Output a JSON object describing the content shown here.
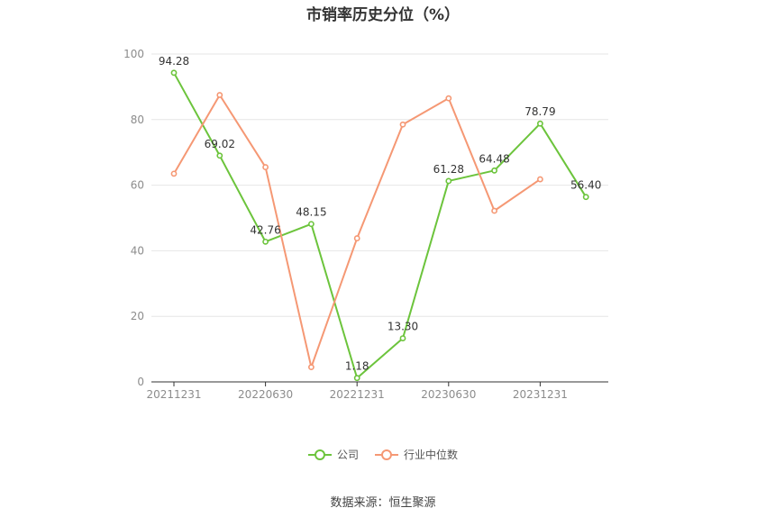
{
  "colors": {
    "company": "#6cc43c",
    "industry": "#f59874",
    "grid": "#e6e6e6",
    "axis": "#333333"
  },
  "chart_data": {
    "type": "line",
    "title": "市销率历史分位（%）",
    "xlabel": "",
    "ylabel": "",
    "ylim": [
      0,
      100
    ],
    "yticks": [
      0,
      20,
      40,
      60,
      80,
      100
    ],
    "x_tick_labels": [
      "20211231",
      "20220630",
      "20221231",
      "20230630",
      "20231231"
    ],
    "categories": [
      "20211231",
      "20220331",
      "20220630",
      "20220930",
      "20221231",
      "20230331",
      "20230630",
      "20230930",
      "20231231",
      "20240331"
    ],
    "grid": true,
    "legend_position": "bottom",
    "series": [
      {
        "name": "公司",
        "color": "#6cc43c",
        "values": [
          94.28,
          69.02,
          42.76,
          48.15,
          1.18,
          13.3,
          61.28,
          64.48,
          78.79,
          56.4
        ],
        "labels": [
          "94.28",
          "69.02",
          "42.76",
          "48.15",
          "1.18",
          "13.30",
          "61.28",
          "64.48",
          "78.79",
          "56.40"
        ]
      },
      {
        "name": "行业中位数",
        "color": "#f59874",
        "values": [
          63.5,
          87.5,
          65.5,
          4.5,
          43.8,
          78.5,
          86.5,
          52.2,
          61.8,
          null
        ],
        "labels": []
      }
    ]
  },
  "source": "数据来源：恒生聚源"
}
